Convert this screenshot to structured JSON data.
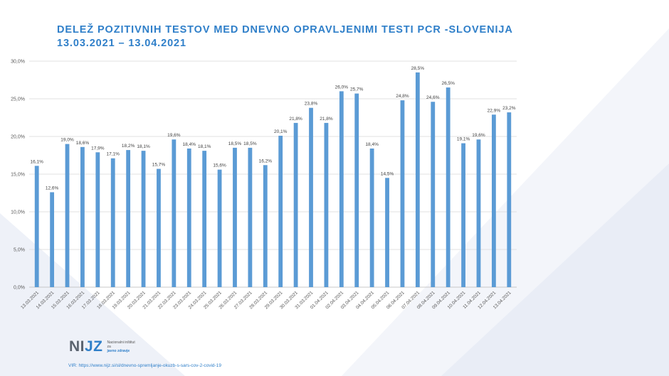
{
  "title_line1": "DELEŽ POZITIVNIH TESTOV MED DNEVNO OPRAVLJENIMI TESTI PCR -SLOVENIJA",
  "title_line2": "13.03.2021  – 13.04.2021",
  "colors": {
    "bar": "#5b9bd5",
    "title": "#2f7fc9",
    "grid": "#d9d9d9"
  },
  "logo": {
    "mark_left": "NI",
    "mark_right": "JZ",
    "text_line1": "Nacionalni inštitut",
    "text_line2": "za",
    "text_line3": "javno zdravje"
  },
  "source": "VIR: https://www.nijz.si/sl/dnevno-spremljanje-okuzb-s-sars-cov-2-covid-19",
  "chart_data": {
    "type": "bar",
    "title": "DELEŽ POZITIVNIH TESTOV MED DNEVNO OPRAVLJENIMI TESTI PCR -SLOVENIJA",
    "xlabel": "",
    "ylabel": "",
    "ylim": [
      0,
      30
    ],
    "yticks": [
      "0,0%",
      "5,0%",
      "10,0%",
      "15,0%",
      "20,0%",
      "25,0%",
      "30,0%"
    ],
    "grid": true,
    "categories": [
      "13.03.2021",
      "14.03.2021",
      "15.03.2021",
      "16.03.2021",
      "17.03.2021",
      "18.03.2021",
      "19.03.2021",
      "20.03.2021",
      "21.03.2021",
      "22.03.2021",
      "23.03.2021",
      "24.03.2021",
      "25.03.2021",
      "26.03.2021",
      "27.03.2021",
      "28.03.2021",
      "29.03.2021",
      "30.03.2021",
      "31.03.2021",
      "01.04.2021",
      "02.04.2021",
      "03.04.2021",
      "04.04.2021",
      "05.04.2021",
      "06.04.2021",
      "07.04.2021",
      "08.04.2021",
      "09.04.2021",
      "10.04.2021",
      "11.04.2021",
      "12.04.2021",
      "13.04.2021"
    ],
    "values": [
      16.1,
      12.6,
      19.0,
      18.6,
      17.9,
      17.1,
      18.2,
      18.1,
      15.7,
      19.6,
      18.4,
      18.1,
      15.6,
      18.5,
      18.5,
      16.2,
      20.1,
      21.8,
      23.8,
      21.8,
      26.0,
      25.7,
      18.4,
      14.5,
      24.8,
      28.5,
      24.6,
      26.5,
      19.1,
      19.6,
      22.9,
      23.2
    ],
    "labels": [
      "16,1%",
      "12,6%",
      "19,0%",
      "18,6%",
      "17,9%",
      "17,1%",
      "18,2%",
      "18,1%",
      "15,7%",
      "19,6%",
      "18,4%",
      "18,1%",
      "15,6%",
      "18,5%",
      "18,5%",
      "16,2%",
      "20,1%",
      "21,8%",
      "23,8%",
      "21,8%",
      "26,0%",
      "25,7%",
      "18,4%",
      "14,5%",
      "24,8%",
      "28,5%",
      "24,6%",
      "26,5%",
      "19,1%",
      "19,6%",
      "22,9%",
      "23,2%"
    ]
  }
}
